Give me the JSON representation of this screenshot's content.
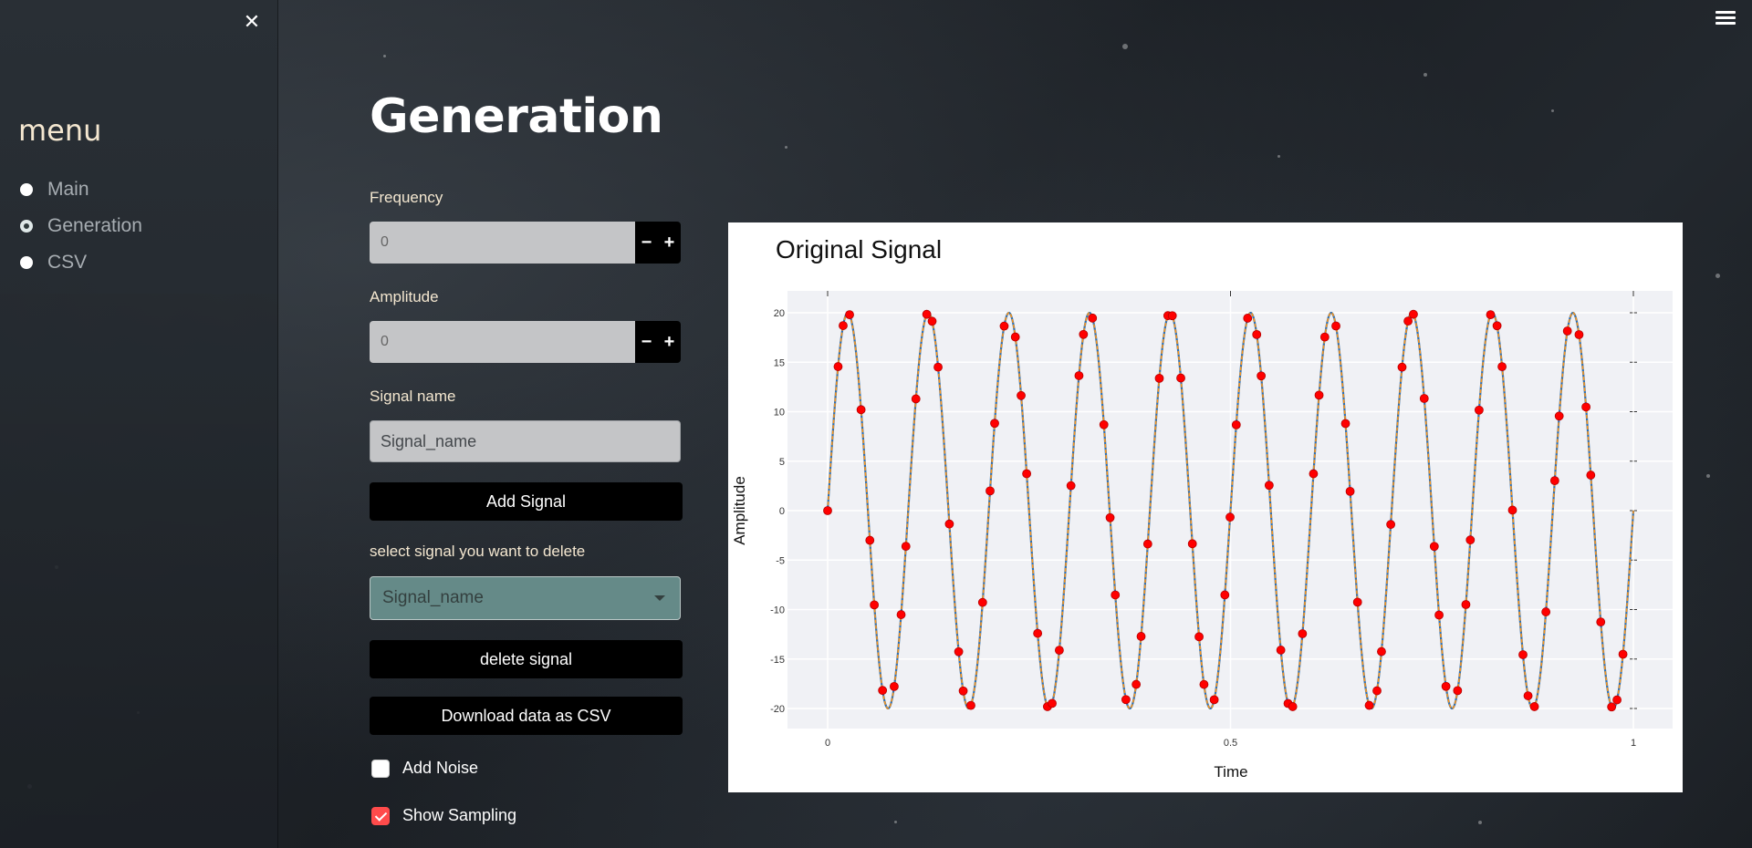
{
  "sidebar": {
    "close_icon": "close-icon",
    "title": "menu",
    "items": [
      {
        "label": "Main",
        "selected": false
      },
      {
        "label": "Generation",
        "selected": true
      },
      {
        "label": "CSV",
        "selected": false
      }
    ]
  },
  "header": {
    "menu_icon": "hamburger-menu-icon"
  },
  "main": {
    "title": "Generation",
    "frequency": {
      "label": "Frequency",
      "value": "0",
      "minus": "−",
      "plus": "+"
    },
    "amplitude": {
      "label": "Amplitude",
      "value": "0",
      "minus": "−",
      "plus": "+"
    },
    "signal_name": {
      "label": "Signal name",
      "value": "Signal_name"
    },
    "add_signal_label": "Add Signal",
    "delete_select": {
      "label": "select signal you want to delete",
      "value": "Signal_name"
    },
    "delete_signal_label": "delete signal",
    "download_label": "Download data as CSV",
    "add_noise": {
      "label": "Add Noise",
      "checked": false
    },
    "show_sampling": {
      "label": "Show Sampling",
      "checked": true
    }
  },
  "colors": {
    "line": "#8c7a3a",
    "sample_point": "#ff0000",
    "checkbox_checked": "#ff4b4b",
    "select_bg": "#658a88"
  },
  "chart_data": {
    "type": "line",
    "title": "Original Signal",
    "xlabel": "Time",
    "ylabel": "Amplitude",
    "xlim": [
      0,
      1
    ],
    "ylim": [
      -22,
      22
    ],
    "x_ticks": [
      "0",
      "0.5",
      "1"
    ],
    "y_ticks": [
      "20",
      "15",
      "10",
      "5",
      "0",
      "-5",
      "-10",
      "-15",
      "-20"
    ],
    "grid": true,
    "series": [
      {
        "amplitude": 20,
        "frequency_hz": 10,
        "x_start": 0,
        "x_end": 1,
        "style": "line"
      },
      {
        "amplitude": 20,
        "frequency_hz": 10,
        "sample_count": 101,
        "x_start": 0,
        "x_end": 1,
        "style": "markers"
      }
    ]
  }
}
